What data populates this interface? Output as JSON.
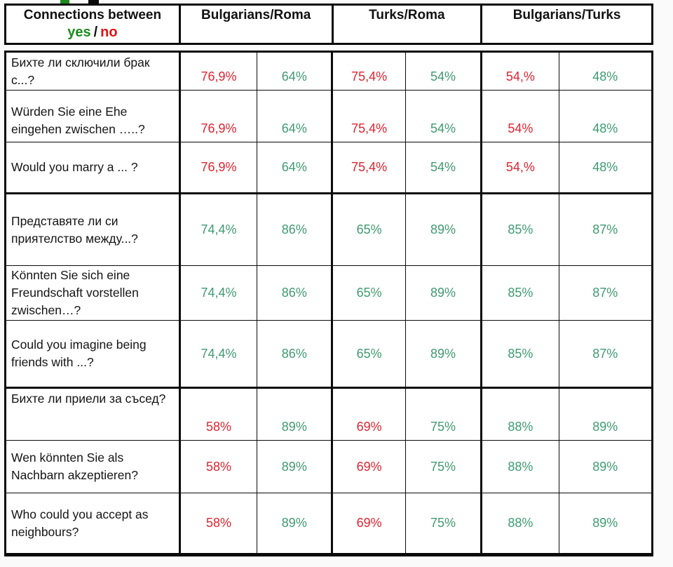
{
  "colors": {
    "value_red": "#de2430",
    "value_green": "#3f9a71",
    "yes_green": "#1e8a1e",
    "no_red": "#e01212"
  },
  "header": {
    "title_line1": "Connections between",
    "yes_label": "yes",
    "separator": "/",
    "no_label": "no",
    "group_headers": [
      "Bulgarians/Roma",
      "Turks/Roma",
      "Bulgarians/Turks"
    ]
  },
  "table": {
    "rows": [
      {
        "question": "Бихте ли сключили брак с...?",
        "values": [
          {
            "text": "76,9%",
            "color": "red"
          },
          {
            "text": "64%",
            "color": "green"
          },
          {
            "text": "75,4%",
            "color": "red"
          },
          {
            "text": "54%",
            "color": "green"
          },
          {
            "text": "54,%",
            "color": "red"
          },
          {
            "text": "48%",
            "color": "green"
          }
        ]
      },
      {
        "question": "Würden Sie eine Ehe eingehen zwischen …..?",
        "values": [
          {
            "text": "76,9%",
            "color": "red"
          },
          {
            "text": "64%",
            "color": "green"
          },
          {
            "text": "75,4%",
            "color": "red"
          },
          {
            "text": "54%",
            "color": "green"
          },
          {
            "text": "54%",
            "color": "red"
          },
          {
            "text": "48%",
            "color": "green"
          }
        ]
      },
      {
        "question": "Would you marry a ... ?",
        "values": [
          {
            "text": "76,9%",
            "color": "red"
          },
          {
            "text": "64%",
            "color": "green"
          },
          {
            "text": "75,4%",
            "color": "red"
          },
          {
            "text": "54%",
            "color": "green"
          },
          {
            "text": "54,%",
            "color": "red"
          },
          {
            "text": "48%",
            "color": "green"
          }
        ]
      },
      {
        "question": "Представяте ли си приятелство между...?",
        "values": [
          {
            "text": "74,4%",
            "color": "green"
          },
          {
            "text": "86%",
            "color": "green"
          },
          {
            "text": "65%",
            "color": "green"
          },
          {
            "text": "89%",
            "color": "green"
          },
          {
            "text": "85%",
            "color": "green"
          },
          {
            "text": "87%",
            "color": "green"
          }
        ]
      },
      {
        "question": "Könnten Sie sich eine Freundschaft vorstellen zwischen…?",
        "values": [
          {
            "text": "74,4%",
            "color": "green"
          },
          {
            "text": "86%",
            "color": "green"
          },
          {
            "text": "65%",
            "color": "green"
          },
          {
            "text": "89%",
            "color": "green"
          },
          {
            "text": "85%",
            "color": "green"
          },
          {
            "text": "87%",
            "color": "green"
          }
        ]
      },
      {
        "question": "Could you imagine being friends with ...?",
        "values": [
          {
            "text": "74,4%",
            "color": "green"
          },
          {
            "text": "86%",
            "color": "green"
          },
          {
            "text": "65%",
            "color": "green"
          },
          {
            "text": "89%",
            "color": "green"
          },
          {
            "text": "85%",
            "color": "green"
          },
          {
            "text": "87%",
            "color": "green"
          }
        ]
      },
      {
        "question": "Бихте ли приели за съсед?",
        "values": [
          {
            "text": "58%",
            "color": "red"
          },
          {
            "text": "89%",
            "color": "green"
          },
          {
            "text": "69%",
            "color": "red"
          },
          {
            "text": "75%",
            "color": "green"
          },
          {
            "text": "88%",
            "color": "green"
          },
          {
            "text": "89%",
            "color": "green"
          }
        ]
      },
      {
        "question": "Wen könnten Sie als Nachbarn akzeptieren?",
        "values": [
          {
            "text": "58%",
            "color": "red"
          },
          {
            "text": "89%",
            "color": "green"
          },
          {
            "text": "69%",
            "color": "red"
          },
          {
            "text": "75%",
            "color": "green"
          },
          {
            "text": "88%",
            "color": "green"
          },
          {
            "text": "89%",
            "color": "green"
          }
        ]
      },
      {
        "question": "Who could you accept as neighbours?",
        "values": [
          {
            "text": "58%",
            "color": "red"
          },
          {
            "text": "89%",
            "color": "green"
          },
          {
            "text": "69%",
            "color": "red"
          },
          {
            "text": "75%",
            "color": "green"
          },
          {
            "text": "88%",
            "color": "green"
          },
          {
            "text": "89%",
            "color": "green"
          }
        ]
      }
    ]
  }
}
